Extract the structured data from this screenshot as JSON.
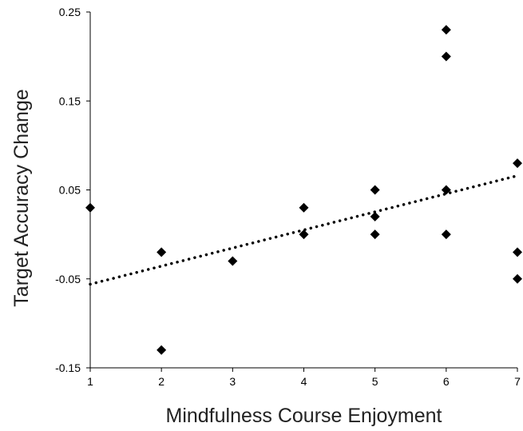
{
  "chart_data": {
    "type": "scatter",
    "title": "",
    "xlabel": "Mindfulness Course Enjoyment",
    "ylabel": "Target Accuracy Change",
    "xlim": [
      1,
      7
    ],
    "ylim": [
      -0.15,
      0.25
    ],
    "x_ticks": [
      "1",
      "2",
      "3",
      "4",
      "5",
      "6",
      "7"
    ],
    "y_ticks": [
      "0.25",
      "0.15",
      "0.05",
      "-0.05",
      "-0.15"
    ],
    "grid": false,
    "legend": "none",
    "marker": "diamond",
    "marker_color": "#000000",
    "trendline": {
      "style": "dotted",
      "color": "#000000",
      "x": [
        1,
        7
      ],
      "y": [
        -0.056,
        0.066
      ]
    },
    "points": [
      {
        "x": 1,
        "y": 0.03
      },
      {
        "x": 2,
        "y": -0.02
      },
      {
        "x": 2,
        "y": -0.13
      },
      {
        "x": 3,
        "y": -0.03
      },
      {
        "x": 4,
        "y": 0.03
      },
      {
        "x": 4,
        "y": 0.0
      },
      {
        "x": 5,
        "y": 0.05
      },
      {
        "x": 5,
        "y": 0.02
      },
      {
        "x": 5,
        "y": 0.0
      },
      {
        "x": 6,
        "y": 0.23
      },
      {
        "x": 6,
        "y": 0.2
      },
      {
        "x": 6,
        "y": 0.05
      },
      {
        "x": 6,
        "y": 0.0
      },
      {
        "x": 7,
        "y": 0.08
      },
      {
        "x": 7,
        "y": -0.02
      },
      {
        "x": 7,
        "y": -0.05
      }
    ]
  }
}
